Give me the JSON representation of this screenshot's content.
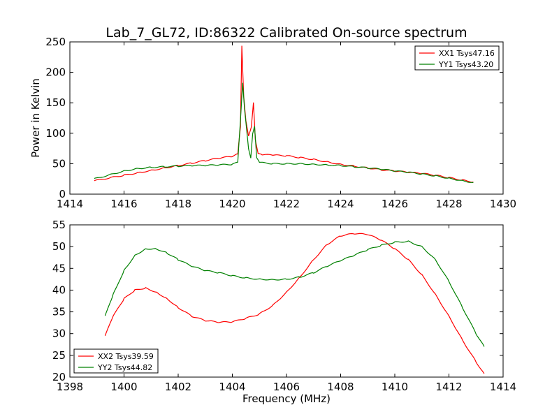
{
  "title": "Lab_7_GL72, ID:86322 Calibrated On-source spectrum",
  "chart_data": [
    {
      "type": "line",
      "title": "Lab_7_GL72, ID:86322 Calibrated On-source spectrum",
      "xlabel": "",
      "ylabel": "Power in Kelvin",
      "xlim": [
        1414,
        1430
      ],
      "ylim": [
        0,
        250
      ],
      "xticks": [
        1414,
        1416,
        1418,
        1420,
        1422,
        1424,
        1426,
        1428,
        1430
      ],
      "yticks": [
        0,
        50,
        100,
        150,
        200,
        250
      ],
      "legend_position": "top-right",
      "grid": false,
      "series": [
        {
          "name": "XX1 Tsys47.16",
          "color": "#ff0000",
          "x": [
            1414.9,
            1415.5,
            1416.0,
            1416.5,
            1417.0,
            1417.5,
            1418.0,
            1418.5,
            1419.0,
            1419.5,
            1420.0,
            1420.2,
            1420.3,
            1420.35,
            1420.42,
            1420.5,
            1420.6,
            1420.7,
            1420.78,
            1420.85,
            1420.95,
            1421.1,
            1421.5,
            1422.0,
            1422.5,
            1423.0,
            1423.5,
            1424.0,
            1424.5,
            1425.0,
            1425.5,
            1426.0,
            1426.5,
            1427.0,
            1427.5,
            1428.0,
            1428.5,
            1428.9
          ],
          "y": [
            22,
            27,
            31,
            35,
            39,
            43,
            47,
            51,
            55,
            59,
            62,
            66,
            110,
            243,
            160,
            120,
            95,
            110,
            151,
            90,
            68,
            65,
            64,
            63,
            60,
            57,
            53,
            49,
            46,
            43,
            40,
            38,
            36,
            34,
            31,
            27,
            23,
            20
          ]
        },
        {
          "name": "YY1 Tsys43.20",
          "color": "#008000",
          "x": [
            1414.9,
            1415.5,
            1416.0,
            1416.5,
            1417.0,
            1417.5,
            1418.0,
            1418.5,
            1419.0,
            1419.5,
            1420.0,
            1420.2,
            1420.3,
            1420.38,
            1420.45,
            1420.52,
            1420.6,
            1420.68,
            1420.75,
            1420.82,
            1420.9,
            1421.0,
            1421.5,
            1422.0,
            1422.5,
            1423.0,
            1423.5,
            1424.0,
            1424.5,
            1425.0,
            1425.5,
            1426.0,
            1426.5,
            1427.0,
            1427.5,
            1428.0,
            1428.5,
            1428.9
          ],
          "y": [
            25,
            32,
            38,
            42,
            44,
            45,
            46,
            47,
            47,
            48,
            49,
            52,
            120,
            182,
            140,
            110,
            75,
            60,
            100,
            112,
            60,
            52,
            50,
            50,
            50,
            49,
            48,
            47,
            45,
            43,
            41,
            38,
            36,
            33,
            30,
            26,
            22,
            19
          ]
        }
      ]
    },
    {
      "type": "line",
      "title": "",
      "xlabel": "Frequency (MHz)",
      "ylabel": "",
      "xlim": [
        1398,
        1414
      ],
      "ylim": [
        20,
        55
      ],
      "xticks": [
        1398,
        1400,
        1402,
        1404,
        1406,
        1408,
        1410,
        1412,
        1414
      ],
      "yticks": [
        20,
        25,
        30,
        35,
        40,
        45,
        50,
        55
      ],
      "legend_position": "bottom-left",
      "grid": false,
      "series": [
        {
          "name": "XX2 Tsys39.59",
          "color": "#ff0000",
          "x": [
            1399.3,
            1399.6,
            1400.0,
            1400.4,
            1400.8,
            1401.2,
            1401.6,
            1402.0,
            1402.5,
            1403.0,
            1403.5,
            1404.0,
            1404.5,
            1405.0,
            1405.5,
            1406.0,
            1406.5,
            1407.0,
            1407.5,
            1408.0,
            1408.5,
            1409.0,
            1409.5,
            1410.0,
            1410.5,
            1411.0,
            1411.5,
            1412.0,
            1412.5,
            1413.0,
            1413.3
          ],
          "y": [
            29.5,
            34,
            38,
            40,
            40.5,
            39.5,
            38,
            36,
            34,
            33,
            32.6,
            32.7,
            33.5,
            34.5,
            36.5,
            39.5,
            43,
            47,
            50.5,
            52.5,
            53,
            52.8,
            51.5,
            49.5,
            47,
            43.5,
            39,
            34,
            28.5,
            23.5,
            20.8
          ]
        },
        {
          "name": "YY2 Tsys44.82",
          "color": "#008000",
          "x": [
            1399.3,
            1399.6,
            1400.0,
            1400.4,
            1400.8,
            1401.2,
            1401.6,
            1402.0,
            1402.5,
            1403.0,
            1403.5,
            1404.0,
            1404.5,
            1405.0,
            1405.5,
            1406.0,
            1406.5,
            1407.0,
            1407.5,
            1408.0,
            1408.5,
            1409.0,
            1409.5,
            1410.0,
            1410.5,
            1411.0,
            1411.5,
            1412.0,
            1412.5,
            1413.0,
            1413.3
          ],
          "y": [
            34,
            39,
            44.5,
            48,
            49.5,
            49.5,
            48.5,
            47,
            45.5,
            44.5,
            44,
            43.3,
            42.8,
            42.5,
            42.4,
            42.5,
            43,
            44,
            45.5,
            46.8,
            48,
            49.3,
            50.3,
            51,
            51.2,
            50,
            47,
            42,
            36,
            30,
            27
          ]
        }
      ]
    }
  ]
}
